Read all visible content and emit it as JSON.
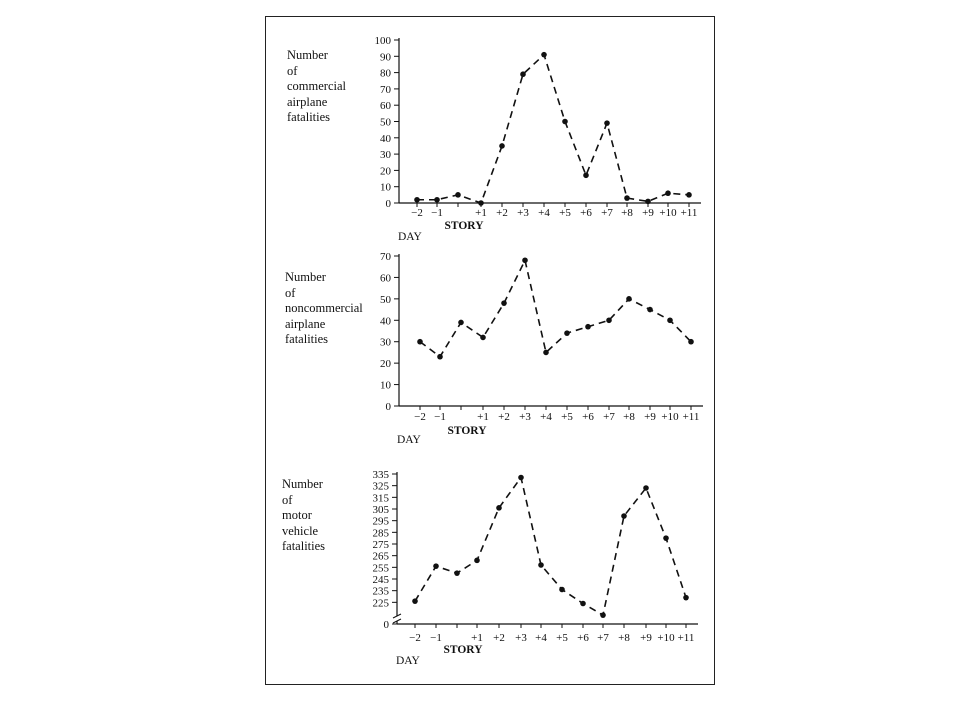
{
  "chart_data": [
    {
      "type": "line",
      "ylabel_lines": [
        "Number",
        "of",
        "commercial",
        "airplane",
        "fatalities"
      ],
      "xlabel_left": "DAY",
      "xlabel_center": "STORY",
      "categories": [
        "−2",
        "−1",
        "STORY",
        "+1",
        "+2",
        "+3",
        "+4",
        "+5",
        "+6",
        "+7",
        "+8",
        "+9",
        "+10",
        "+11"
      ],
      "tick_labels": [
        "−2",
        "−1",
        "",
        "+1",
        "+2",
        "+3",
        "+4",
        "+5",
        "+6",
        "+7",
        "+8",
        "+9",
        "+10",
        "+11"
      ],
      "values": [
        2,
        2,
        5,
        0,
        35,
        79,
        91,
        50,
        17,
        49,
        3,
        1,
        6,
        5
      ],
      "yticks": [
        0,
        10,
        20,
        30,
        40,
        50,
        60,
        70,
        80,
        90,
        100
      ],
      "ylim": [
        0,
        100
      ],
      "line_style": "dashed"
    },
    {
      "type": "line",
      "ylabel_lines": [
        "Number",
        "of",
        "noncommercial",
        "airplane",
        "fatalities"
      ],
      "xlabel_left": "DAY",
      "xlabel_center": "STORY",
      "categories": [
        "−2",
        "−1",
        "STORY",
        "+1",
        "+2",
        "+3",
        "+4",
        "+5",
        "+6",
        "+7",
        "+8",
        "+9",
        "+10",
        "+11"
      ],
      "tick_labels": [
        "−2",
        "−1",
        "",
        "+1",
        "+2",
        "+3",
        "+4",
        "+5",
        "+6",
        "+7",
        "+8",
        "+9",
        "+10",
        "+11"
      ],
      "values": [
        30,
        23,
        39,
        32,
        48,
        68,
        25,
        34,
        37,
        40,
        50,
        45,
        40,
        30
      ],
      "yticks": [
        0,
        10,
        20,
        30,
        40,
        50,
        60,
        70
      ],
      "ylim": [
        0,
        70
      ],
      "line_style": "dashed"
    },
    {
      "type": "line",
      "ylabel_lines": [
        "Number",
        "of",
        "motor",
        "vehicle",
        "fatalities"
      ],
      "xlabel_left": "DAY",
      "xlabel_center": "STORY",
      "categories": [
        "−2",
        "−1",
        "STORY",
        "+1",
        "+2",
        "+3",
        "+4",
        "+5",
        "+6",
        "+7",
        "+8",
        "+9",
        "+10",
        "+11"
      ],
      "tick_labels": [
        "−2",
        "−1",
        "",
        "+1",
        "+2",
        "+3",
        "+4",
        "+5",
        "+6",
        "+7",
        "+8",
        "+9",
        "+10",
        "+11"
      ],
      "values": [
        226,
        256,
        250,
        261,
        306,
        332,
        257,
        236,
        224,
        214,
        299,
        323,
        280,
        229
      ],
      "yticks": [
        225,
        235,
        245,
        255,
        265,
        275,
        285,
        295,
        305,
        315,
        325,
        335
      ],
      "ylim": [
        215,
        335
      ],
      "axis_break": true,
      "baseline_label": "0",
      "line_style": "dashed"
    }
  ]
}
